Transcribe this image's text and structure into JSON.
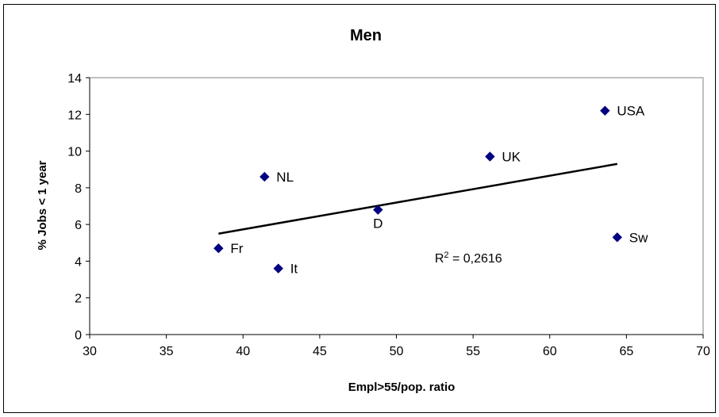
{
  "chart_data": {
    "type": "scatter",
    "title": "Men",
    "xlabel": "Empl>55/pop. ratio",
    "ylabel": "% Jobs < 1 year",
    "xlim": [
      30,
      70
    ],
    "ylim": [
      0,
      14
    ],
    "xticks": [
      30,
      35,
      40,
      45,
      50,
      55,
      60,
      65,
      70
    ],
    "yticks": [
      0,
      2,
      4,
      6,
      8,
      10,
      12,
      14
    ],
    "grid": false,
    "legend": "none",
    "marker_color": "#000080",
    "points": [
      {
        "label": "Fr",
        "x": 38.4,
        "y": 4.7,
        "label_pos": "right"
      },
      {
        "label": "It",
        "x": 42.3,
        "y": 3.6,
        "label_pos": "right"
      },
      {
        "label": "NL",
        "x": 41.4,
        "y": 8.6,
        "label_pos": "right"
      },
      {
        "label": "D",
        "x": 48.8,
        "y": 6.8,
        "label_pos": "below"
      },
      {
        "label": "UK",
        "x": 56.1,
        "y": 9.7,
        "label_pos": "right"
      },
      {
        "label": "USA",
        "x": 63.6,
        "y": 12.2,
        "label_pos": "right"
      },
      {
        "label": "Sw",
        "x": 64.4,
        "y": 5.3,
        "label_pos": "right"
      }
    ],
    "trendline": {
      "type": "linear",
      "x_start": 38.4,
      "y_start": 5.5,
      "x_end": 64.4,
      "y_end": 9.3
    },
    "annotation": {
      "text_base": "R",
      "text_sup": "2",
      "text_rest": " = 0,2616",
      "x": 52.5,
      "y": 4.2
    }
  }
}
